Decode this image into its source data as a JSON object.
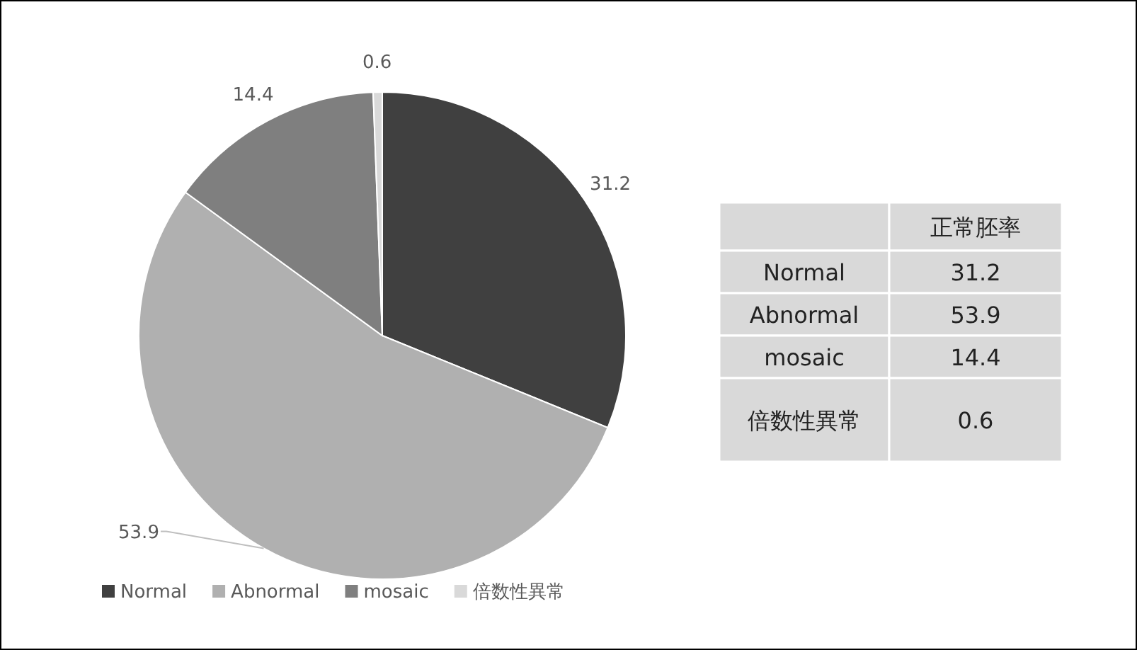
{
  "chart_data": {
    "type": "pie",
    "categories": [
      "Normal",
      "Abnormal",
      "mosaic",
      "倍数性異常"
    ],
    "values": [
      31.2,
      53.9,
      14.4,
      0.6
    ],
    "colors": [
      "#404040",
      "#b0b0b0",
      "#7f7f7f",
      "#d9d9d9"
    ],
    "data_labels": true,
    "value_labels": [
      "31.2",
      "53.9",
      "14.4",
      "0.6"
    ],
    "legend": "bottom",
    "annotations": [
      "正常胚率",
      "31.2",
      "53.9",
      "14.4",
      "0.6"
    ]
  }
}
